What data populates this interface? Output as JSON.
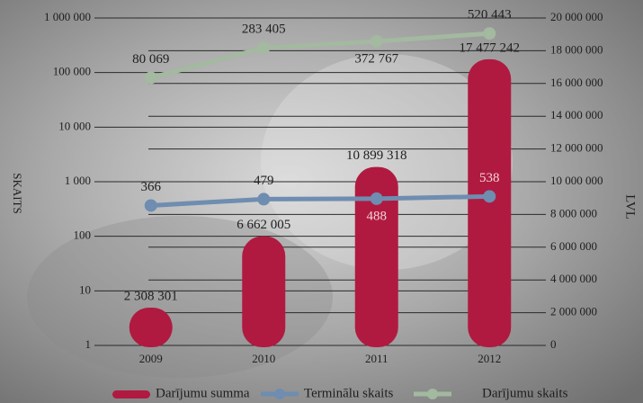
{
  "chart_data": {
    "type": "combo",
    "categories": [
      "2009",
      "2010",
      "2011",
      "2012"
    ],
    "y_label": "SKAITS",
    "y2_label": "LVL",
    "yscale": "log",
    "ylim": [
      1,
      1000000
    ],
    "yticks": [
      1,
      10,
      100,
      {
        "value": 1000,
        "label": "1 000"
      },
      {
        "value": 10000,
        "label": "10 000"
      },
      {
        "value": 100000,
        "label": "100 000"
      },
      {
        "value": 1000000,
        "label": "1 000 000"
      }
    ],
    "y2lim": [
      0,
      20000000
    ],
    "y2ticks": [
      0,
      {
        "value": 2000000,
        "label": "2 000 000"
      },
      {
        "value": 4000000,
        "label": "4 000 000"
      },
      {
        "value": 6000000,
        "label": "6 000 000"
      },
      {
        "value": 8000000,
        "label": "8 000 000"
      },
      {
        "value": 10000000,
        "label": "10 000 000"
      },
      {
        "value": 12000000,
        "label": "12 000 000"
      },
      {
        "value": 14000000,
        "label": "14 000 000"
      },
      {
        "value": 16000000,
        "label": "16 000 000"
      },
      {
        "value": 18000000,
        "label": "18 000 000"
      },
      {
        "value": 20000000,
        "label": "20 000 000"
      }
    ],
    "grid": true,
    "legend": "bottom",
    "series": [
      {
        "name": "Darījumu summa",
        "type": "bar",
        "axis": "y2",
        "color": "#b01a40",
        "values": [
          2308301,
          6662005,
          10899318,
          17477242
        ],
        "value_labels": [
          "2 308 301",
          "6 662 005",
          "10 899 318",
          "17 477 242"
        ]
      },
      {
        "name": "Terminālu skaits",
        "type": "line",
        "axis": "y",
        "color": "#6e8db0",
        "values": [
          366,
          479,
          488,
          538
        ],
        "value_labels": [
          "366",
          "479",
          "488",
          "538"
        ]
      },
      {
        "name": "Darījumu skaits",
        "type": "line",
        "axis": "y",
        "color": "#a3b9a0",
        "values": [
          80069,
          283405,
          372767,
          520443
        ],
        "value_labels": [
          "80 069",
          "283 405",
          "372 767",
          "520 443"
        ]
      }
    ]
  }
}
